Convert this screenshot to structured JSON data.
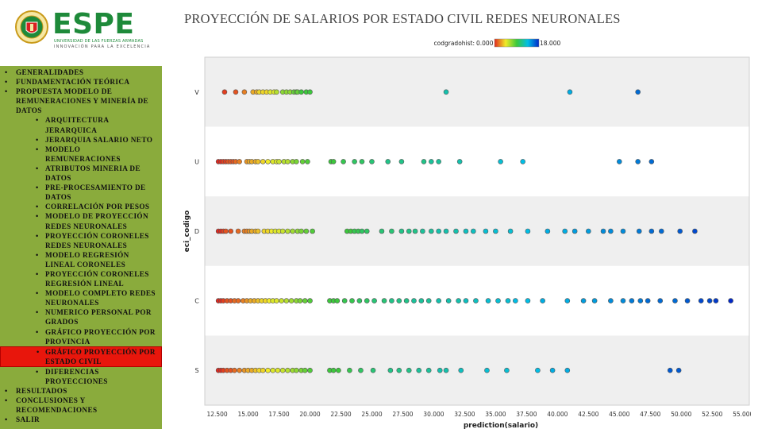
{
  "header": {
    "logo_text": "ESPE",
    "logo_subtitle_1": "UNIVERSIDAD DE LAS FUERZAS ARMADAS",
    "logo_subtitle_2": "INNOVACIÓN PARA LA EXCELENCIA",
    "title": "PROYECCIÓN DE SALARIOS POR ESTADO CIVIL REDES NEURONALES"
  },
  "sidebar": {
    "items": [
      {
        "label": "GENERALIDADES",
        "level": 1
      },
      {
        "label": "FUNDAMENTACIÓN TEÓRICA",
        "level": 1
      },
      {
        "label": "PROPUESTA MODELO DE REMUNERACIONES Y MINERÍA DE DATOS",
        "level": 1
      },
      {
        "label": "ARQUITECTURA JERARQUICA",
        "level": 2
      },
      {
        "label": "JERARQUIA SALARIO NETO",
        "level": 2
      },
      {
        "label": "MODELO REMUNERACIONES",
        "level": 2
      },
      {
        "label": "ATRIBUTOS MINERIA DE DATOS",
        "level": 2
      },
      {
        "label": "PRE-PROCESAMIENTO DE DATOS",
        "level": 2
      },
      {
        "label": "CORRELACIÓN POR PESOS",
        "level": 2
      },
      {
        "label": "MODELO DE PROYECCIÓN REDES NEURONALES",
        "level": 2
      },
      {
        "label": "PROYECCIÓN CORONELES REDES NEURONALES",
        "level": 2
      },
      {
        "label": "MODELO REGRESIÓN LINEAL CORONELES",
        "level": 2
      },
      {
        "label": "PROYECCIÓN CORONELES REGRESIÓN LINEAL",
        "level": 2
      },
      {
        "label": "MODELO COMPLETO REDES NEURONALES",
        "level": 2
      },
      {
        "label": "NUMERICO PERSONAL POR GRADOS",
        "level": 2
      },
      {
        "label": "GRÁFICO PROYECCIÓN POR PROVINCIA",
        "level": 2
      },
      {
        "label": "GRÁFICO PROYECCIÓN POR ESTADO CIVIL",
        "level": 2,
        "active": true
      },
      {
        "label": "DIFERENCIAS PROYECCIONES",
        "level": 2
      },
      {
        "label": "RESULTADOS",
        "level": 1
      },
      {
        "label": "CONCLUSIONES Y RECOMENDACIONES",
        "level": 1
      },
      {
        "label": "SALIR",
        "level": 1
      }
    ]
  },
  "chart_data": {
    "type": "scatter",
    "title": "",
    "xlabel": "prediction(salario)",
    "ylabel": "eci_codigo",
    "color_legend": {
      "label": "codgradohist",
      "min": "0.000",
      "max": "18.000",
      "position": "top"
    },
    "xlim": [
      11500,
      55500
    ],
    "x_ticks": [
      12500,
      15000,
      17500,
      20000,
      22500,
      25000,
      27500,
      30000,
      32500,
      35000,
      37500,
      40000,
      42500,
      45000,
      47500,
      50000,
      52500,
      55000
    ],
    "x_tick_labels": [
      "12.500",
      "15.000",
      "17.500",
      "20.000",
      "22.500",
      "25.000",
      "27.500",
      "30.000",
      "32.500",
      "35.000",
      "37.500",
      "40.000",
      "42.500",
      "45.000",
      "47.500",
      "50.000",
      "52.500",
      "55.000"
    ],
    "categories": [
      "V",
      "U",
      "D",
      "C",
      "S"
    ],
    "grid": false,
    "series": [
      {
        "category": "V",
        "points": [
          [
            13100,
            0.5
          ],
          [
            14000,
            1
          ],
          [
            14700,
            2
          ],
          [
            15400,
            3
          ],
          [
            15700,
            3
          ],
          [
            15900,
            4
          ],
          [
            16200,
            4
          ],
          [
            16500,
            4
          ],
          [
            16800,
            5
          ],
          [
            17100,
            5
          ],
          [
            17300,
            6
          ],
          [
            17800,
            7
          ],
          [
            18100,
            7
          ],
          [
            18400,
            7
          ],
          [
            18700,
            8
          ],
          [
            18900,
            8
          ],
          [
            19000,
            8
          ],
          [
            19300,
            9
          ],
          [
            19700,
            9
          ],
          [
            20000,
            9
          ],
          [
            31000,
            12
          ],
          [
            41000,
            14
          ],
          [
            46500,
            16
          ]
        ]
      },
      {
        "category": "U",
        "points": [
          [
            12600,
            0
          ],
          [
            12800,
            0
          ],
          [
            13000,
            0.5
          ],
          [
            13200,
            0.5
          ],
          [
            13400,
            1
          ],
          [
            13600,
            1
          ],
          [
            13800,
            1
          ],
          [
            14000,
            1.5
          ],
          [
            14300,
            2
          ],
          [
            14900,
            2.5
          ],
          [
            15100,
            3
          ],
          [
            15300,
            3
          ],
          [
            15600,
            3
          ],
          [
            15800,
            3.5
          ],
          [
            16200,
            4
          ],
          [
            16600,
            4.5
          ],
          [
            17000,
            5
          ],
          [
            17300,
            5
          ],
          [
            17500,
            5.5
          ],
          [
            17900,
            6
          ],
          [
            18200,
            6
          ],
          [
            18600,
            7
          ],
          [
            18900,
            7.5
          ],
          [
            19400,
            8
          ],
          [
            19800,
            8.5
          ],
          [
            21700,
            9
          ],
          [
            21900,
            9
          ],
          [
            22700,
            9.5
          ],
          [
            23600,
            10
          ],
          [
            24200,
            10
          ],
          [
            25000,
            10.5
          ],
          [
            26300,
            11
          ],
          [
            27400,
            11
          ],
          [
            29200,
            11
          ],
          [
            29800,
            11.5
          ],
          [
            30400,
            11.5
          ],
          [
            32100,
            12
          ],
          [
            35400,
            13
          ],
          [
            37200,
            13.5
          ],
          [
            45000,
            15
          ],
          [
            46500,
            15.5
          ],
          [
            47600,
            16
          ]
        ]
      },
      {
        "category": "D",
        "points": [
          [
            12600,
            0
          ],
          [
            12800,
            0
          ],
          [
            13000,
            0.5
          ],
          [
            13200,
            1
          ],
          [
            13600,
            1
          ],
          [
            14200,
            1.5
          ],
          [
            14700,
            2
          ],
          [
            14900,
            2
          ],
          [
            15100,
            2.5
          ],
          [
            15300,
            3
          ],
          [
            15600,
            3
          ],
          [
            15800,
            3.5
          ],
          [
            16300,
            4
          ],
          [
            16600,
            4
          ],
          [
            16900,
            4.5
          ],
          [
            17200,
            5
          ],
          [
            17500,
            5
          ],
          [
            17800,
            5.5
          ],
          [
            18200,
            6
          ],
          [
            18600,
            6.5
          ],
          [
            19000,
            7
          ],
          [
            19300,
            7.5
          ],
          [
            19700,
            8
          ],
          [
            20200,
            8.5
          ],
          [
            23000,
            9
          ],
          [
            23300,
            9
          ],
          [
            23600,
            9.5
          ],
          [
            23900,
            9.5
          ],
          [
            24200,
            10
          ],
          [
            24600,
            10
          ],
          [
            25800,
            10.5
          ],
          [
            26600,
            10.5
          ],
          [
            27400,
            11
          ],
          [
            28000,
            11
          ],
          [
            28500,
            11
          ],
          [
            29100,
            11.5
          ],
          [
            29800,
            11.5
          ],
          [
            30400,
            12
          ],
          [
            31000,
            12
          ],
          [
            31800,
            12
          ],
          [
            32600,
            12.5
          ],
          [
            33200,
            12.5
          ],
          [
            34200,
            13
          ],
          [
            35000,
            13
          ],
          [
            36200,
            13
          ],
          [
            37600,
            13.5
          ],
          [
            39200,
            14
          ],
          [
            40600,
            14
          ],
          [
            41400,
            14.5
          ],
          [
            42500,
            14.5
          ],
          [
            43700,
            15
          ],
          [
            44300,
            15
          ],
          [
            45300,
            15
          ],
          [
            46600,
            15.5
          ],
          [
            47600,
            16
          ],
          [
            48400,
            16
          ],
          [
            49900,
            16.5
          ],
          [
            51100,
            17
          ]
        ]
      },
      {
        "category": "C",
        "points": [
          [
            12600,
            0
          ],
          [
            12800,
            0
          ],
          [
            13000,
            0.5
          ],
          [
            13300,
            1
          ],
          [
            13600,
            1
          ],
          [
            13900,
            1.5
          ],
          [
            14200,
            1.5
          ],
          [
            14600,
            2
          ],
          [
            14900,
            2.5
          ],
          [
            15200,
            3
          ],
          [
            15500,
            3
          ],
          [
            15800,
            3.5
          ],
          [
            16100,
            4
          ],
          [
            16400,
            4
          ],
          [
            16700,
            4.5
          ],
          [
            17000,
            5
          ],
          [
            17300,
            5
          ],
          [
            17700,
            5.5
          ],
          [
            18100,
            6
          ],
          [
            18500,
            6.5
          ],
          [
            18900,
            7
          ],
          [
            19200,
            7.5
          ],
          [
            19600,
            8
          ],
          [
            20000,
            8.5
          ],
          [
            21600,
            9
          ],
          [
            21900,
            9
          ],
          [
            22200,
            9
          ],
          [
            22800,
            9.5
          ],
          [
            23400,
            9.5
          ],
          [
            24000,
            10
          ],
          [
            24600,
            10
          ],
          [
            25200,
            10.5
          ],
          [
            26000,
            10.5
          ],
          [
            26600,
            11
          ],
          [
            27200,
            11
          ],
          [
            27800,
            11
          ],
          [
            28400,
            11.5
          ],
          [
            29000,
            11.5
          ],
          [
            29600,
            11.5
          ],
          [
            30400,
            12
          ],
          [
            31200,
            12
          ],
          [
            32000,
            12
          ],
          [
            32600,
            12.5
          ],
          [
            33400,
            12.5
          ],
          [
            34400,
            13
          ],
          [
            35200,
            13
          ],
          [
            36000,
            13
          ],
          [
            36600,
            13.5
          ],
          [
            37600,
            13.5
          ],
          [
            38800,
            14
          ],
          [
            40800,
            14
          ],
          [
            42100,
            14.5
          ],
          [
            43000,
            14.5
          ],
          [
            44300,
            15
          ],
          [
            45300,
            15
          ],
          [
            46000,
            15.5
          ],
          [
            46700,
            15.5
          ],
          [
            47300,
            16
          ],
          [
            48300,
            16
          ],
          [
            49500,
            16
          ],
          [
            50500,
            16.5
          ],
          [
            51600,
            17
          ],
          [
            52300,
            17
          ],
          [
            52800,
            17.5
          ],
          [
            54000,
            18
          ]
        ]
      },
      {
        "category": "S",
        "points": [
          [
            12600,
            0
          ],
          [
            12800,
            0
          ],
          [
            13000,
            0.5
          ],
          [
            13300,
            1
          ],
          [
            13600,
            1
          ],
          [
            13900,
            1.5
          ],
          [
            14300,
            2
          ],
          [
            14700,
            2.5
          ],
          [
            15000,
            3
          ],
          [
            15300,
            3
          ],
          [
            15600,
            3.5
          ],
          [
            15900,
            4
          ],
          [
            16200,
            4
          ],
          [
            16600,
            4.5
          ],
          [
            17000,
            5
          ],
          [
            17400,
            5
          ],
          [
            17800,
            5.5
          ],
          [
            18200,
            6
          ],
          [
            18600,
            6.5
          ],
          [
            18900,
            7
          ],
          [
            19300,
            7.5
          ],
          [
            19600,
            8
          ],
          [
            20000,
            8.5
          ],
          [
            21600,
            9
          ],
          [
            21900,
            9
          ],
          [
            22300,
            9
          ],
          [
            23200,
            9.5
          ],
          [
            24100,
            10
          ],
          [
            25100,
            10.5
          ],
          [
            26500,
            11
          ],
          [
            27200,
            11
          ],
          [
            28000,
            11
          ],
          [
            28800,
            11.5
          ],
          [
            29600,
            11.5
          ],
          [
            30500,
            12
          ],
          [
            31000,
            12
          ],
          [
            32200,
            12.5
          ],
          [
            34300,
            13
          ],
          [
            35900,
            13
          ],
          [
            38400,
            13.5
          ],
          [
            39600,
            14
          ],
          [
            40800,
            14
          ],
          [
            49100,
            16.5
          ],
          [
            49800,
            16.5
          ]
        ]
      }
    ]
  }
}
